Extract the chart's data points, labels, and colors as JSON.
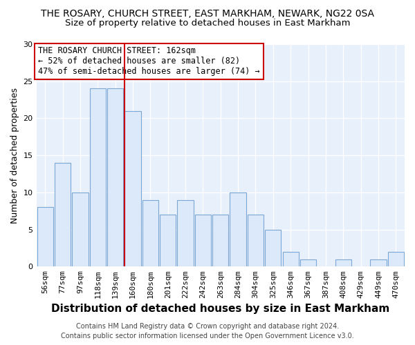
{
  "title": "THE ROSARY, CHURCH STREET, EAST MARKHAM, NEWARK, NG22 0SA",
  "subtitle": "Size of property relative to detached houses in East Markham",
  "xlabel": "Distribution of detached houses by size in East Markham",
  "ylabel": "Number of detached properties",
  "categories": [
    "56sqm",
    "77sqm",
    "97sqm",
    "118sqm",
    "139sqm",
    "160sqm",
    "180sqm",
    "201sqm",
    "222sqm",
    "242sqm",
    "263sqm",
    "284sqm",
    "304sqm",
    "325sqm",
    "346sqm",
    "367sqm",
    "387sqm",
    "408sqm",
    "429sqm",
    "449sqm",
    "470sqm"
  ],
  "values": [
    8,
    14,
    10,
    24,
    24,
    21,
    9,
    7,
    9,
    7,
    7,
    10,
    7,
    5,
    2,
    1,
    0,
    1,
    0,
    1,
    2
  ],
  "bar_fill": "#dce9fb",
  "bar_edge": "#7aa6d4",
  "vline_color": "#cc0000",
  "vline_x_idx": 5,
  "ylim": [
    0,
    30
  ],
  "yticks": [
    0,
    5,
    10,
    15,
    20,
    25,
    30
  ],
  "annotation_text": "THE ROSARY CHURCH STREET: 162sqm\n← 52% of detached houses are smaller (82)\n47% of semi-detached houses are larger (74) →",
  "annotation_box_facecolor": "#ffffff",
  "annotation_box_edgecolor": "#cc0000",
  "footer_line1": "Contains HM Land Registry data © Crown copyright and database right 2024.",
  "footer_line2": "Contains public sector information licensed under the Open Government Licence v3.0.",
  "plot_bg": "#e8f0fc",
  "fig_bg": "#ffffff",
  "grid_color": "#ffffff",
  "title_fontsize": 10,
  "subtitle_fontsize": 9.5,
  "xlabel_fontsize": 11,
  "ylabel_fontsize": 9,
  "tick_fontsize": 8,
  "annot_fontsize": 8.5,
  "footer_fontsize": 7
}
